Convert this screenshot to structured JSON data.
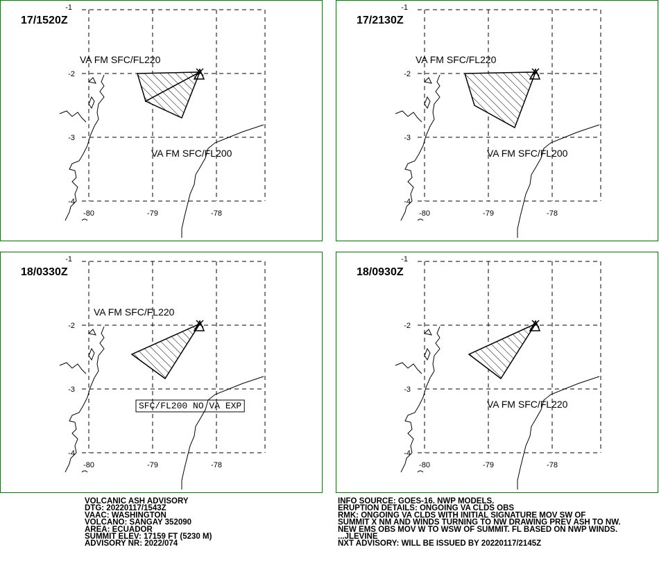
{
  "panels": [
    {
      "time": "17/1520Z",
      "labels": [
        "VA FM SFC/FL220",
        "VA FM SFC/FL200"
      ]
    },
    {
      "time": "17/2130Z",
      "labels": [
        "VA FM SFC/FL220",
        "VA FM SFC/FL200"
      ]
    },
    {
      "time": "18/0330Z",
      "labels": [
        "VA FM SFC/FL220",
        "SFC/FL200 NO VA EXP"
      ]
    },
    {
      "time": "18/0930Z",
      "labels": [
        "VA FM SFC/FL220"
      ]
    }
  ],
  "grid": {
    "lat_labels": [
      "-1",
      "-2",
      "-3",
      "-4"
    ],
    "lon_labels": [
      "-80",
      "-79",
      "-78"
    ]
  },
  "advisory": {
    "left": [
      "VOLCANIC ASH ADVISORY",
      "DTG: 20220117/1543Z",
      "VAAC: WASHINGTON",
      "VOLCANO: SANGAY 352090",
      "AREA: ECUADOR",
      "SUMMIT ELEV: 17159 FT (5230 M)",
      "ADVISORY NR: 2022/074"
    ],
    "right": [
      "INFO SOURCE: GOES-16. NWP MODELS.",
      "ERUPTION DETAILS: ONGOING VA CLDS OBS",
      "RMK: ONGOING VA CLDS WITH INITIAL SIGNATURE MOV SW OF",
      "SUMMIT X NM AND WINDS TURNING TO NW DRAWING PREV ASH TO NW.",
      "NEW EMS OBS MOV W TO WSW OF SUMMIT. FL BASED ON NWP WINDS.",
      "...JLEVINE",
      "NXT ADVISORY: WILL BE ISSUED BY 20220117/2145Z"
    ]
  }
}
